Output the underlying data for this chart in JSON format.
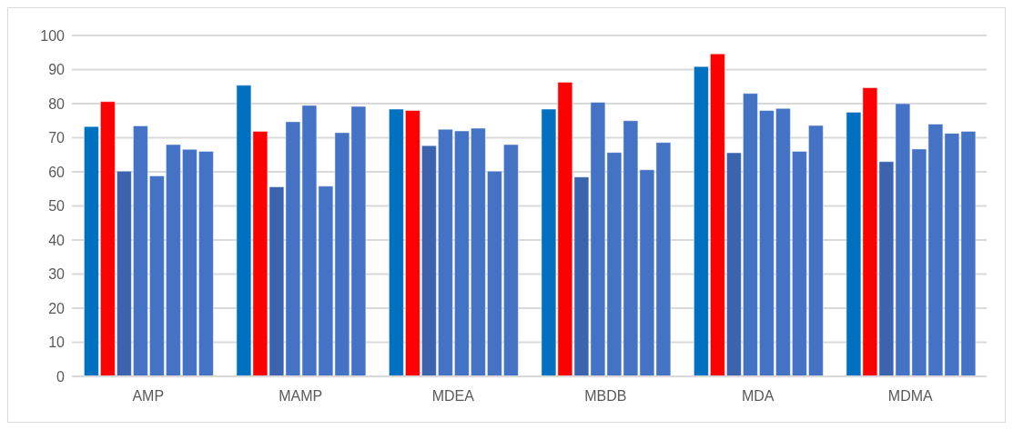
{
  "chart_data": {
    "type": "bar",
    "categories": [
      "AMP",
      "MAMP",
      "MDEA",
      "MBDB",
      "MDA",
      "MDMA"
    ],
    "series": [
      {
        "color": "#0070c0",
        "values": [
          73.3,
          85.4,
          78.4,
          78.4,
          90.9,
          77.5
        ]
      },
      {
        "color": "#ff0000",
        "values": [
          80.6,
          71.9,
          78.0,
          86.3,
          94.6,
          84.7
        ]
      },
      {
        "color": "#3c64ae",
        "values": [
          60.2,
          55.6,
          67.7,
          58.5,
          65.6,
          63.0
        ]
      },
      {
        "color": "#4472c4",
        "values": [
          73.5,
          74.7,
          72.5,
          80.4,
          83.0,
          80.0
        ]
      },
      {
        "color": "#4472c4",
        "values": [
          58.8,
          79.5,
          72.0,
          65.7,
          78.0,
          66.7
        ]
      },
      {
        "color": "#4472c4",
        "values": [
          68.0,
          55.8,
          72.8,
          75.0,
          78.6,
          74.0
        ]
      },
      {
        "color": "#4472c4",
        "values": [
          66.6,
          71.5,
          60.2,
          60.6,
          66.0,
          71.3
        ]
      },
      {
        "color": "#4472c4",
        "values": [
          66.0,
          79.2,
          68.0,
          68.6,
          73.6,
          71.9
        ]
      }
    ],
    "ylim": [
      0,
      100
    ],
    "yticks": [
      0,
      10,
      20,
      30,
      40,
      50,
      60,
      70,
      80,
      90,
      100
    ],
    "grid": "y"
  }
}
